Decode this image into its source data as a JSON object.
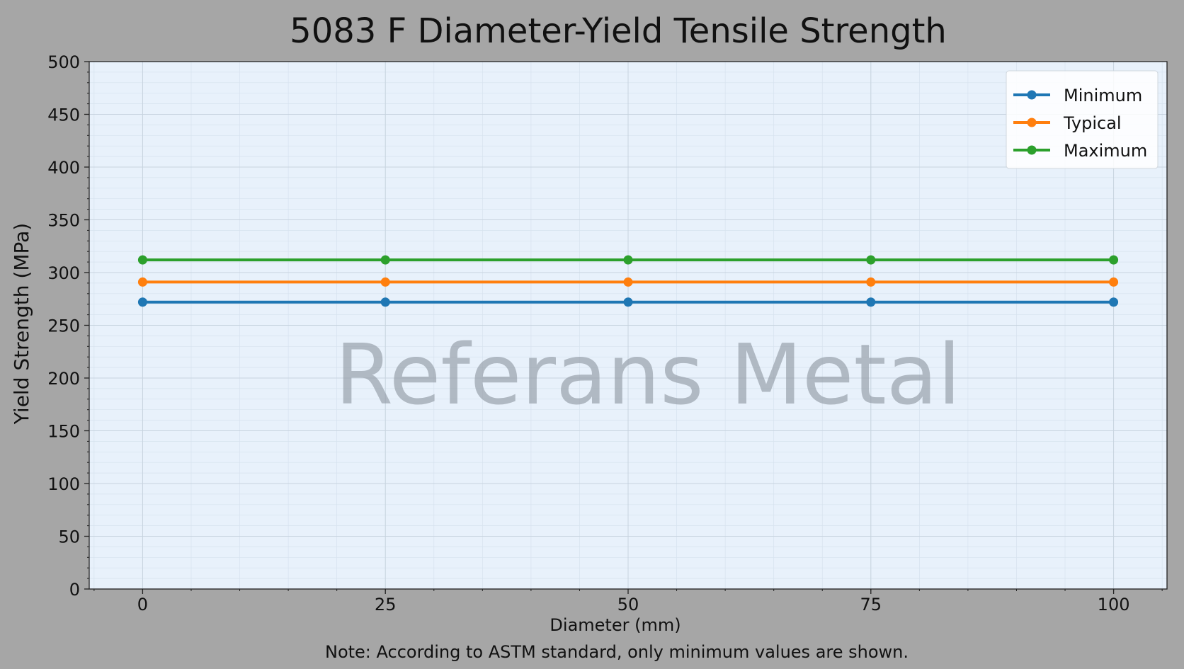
{
  "chart_data": {
    "type": "line",
    "title": "5083 F Diameter-Yield Tensile Strength",
    "xlabel": "Diameter (mm)",
    "ylabel": "Yield Strength (MPa)",
    "note": "Note: According to ASTM standard, only  minimum values are shown.",
    "watermark": "Referans Metal",
    "x": [
      0,
      25,
      50,
      75,
      100
    ],
    "xlim": [
      -5.5,
      105.5
    ],
    "ylim": [
      0,
      500
    ],
    "xticks": [
      0,
      25,
      50,
      75,
      100
    ],
    "yticks": [
      0,
      50,
      100,
      150,
      200,
      250,
      300,
      350,
      400,
      450,
      500
    ],
    "grid": true,
    "legend_position": "top-right",
    "series": [
      {
        "name": "Minimum",
        "color": "#1f77b4",
        "values": [
          272,
          272,
          272,
          272,
          272
        ]
      },
      {
        "name": "Typical",
        "color": "#ff7f0e",
        "values": [
          291,
          291,
          291,
          291,
          291
        ]
      },
      {
        "name": "Maximum",
        "color": "#2ca02c",
        "values": [
          312,
          312,
          312,
          312,
          312
        ]
      }
    ]
  },
  "colors": {
    "page_background": "#a6a6a6",
    "plot_background": "#e8f1fb",
    "watermark": "#8e96a0"
  }
}
